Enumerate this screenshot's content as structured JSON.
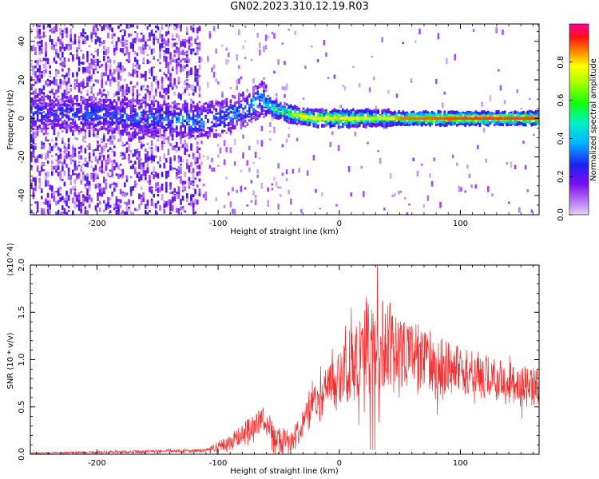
{
  "title": "GN02.2023.310.12.19.R03",
  "chart_data": [
    {
      "type": "heatmap",
      "xlabel": "Height of straight line (km)",
      "ylabel": "Frequency (Hz)",
      "xlim": [
        -255,
        165
      ],
      "ylim": [
        -50,
        49
      ],
      "xticks": [
        -200,
        -100,
        0,
        100
      ],
      "yticks": [
        -40,
        -20,
        0,
        20,
        40
      ],
      "colorbar": {
        "label": "Normalized spectral amplitude",
        "range": [
          0.0,
          1.0
        ],
        "ticks": [
          "0.0",
          "0.2",
          "0.4",
          "0.6",
          "0.8"
        ],
        "colormap": "rainbow (purple → blue → cyan → green → yellow → red → magenta)"
      },
      "ridge_frequency_hz": [
        {
          "x": -250,
          "f": 3
        },
        {
          "x": -200,
          "f": 2
        },
        {
          "x": -150,
          "f": 0
        },
        {
          "x": -120,
          "f": -2
        },
        {
          "x": -100,
          "f": 0
        },
        {
          "x": -80,
          "f": 4
        },
        {
          "x": -65,
          "f": 10
        },
        {
          "x": -55,
          "f": 5
        },
        {
          "x": -40,
          "f": 2
        },
        {
          "x": -20,
          "f": 0
        },
        {
          "x": 0,
          "f": 0
        },
        {
          "x": 50,
          "f": 0
        },
        {
          "x": 100,
          "f": 0
        },
        {
          "x": 165,
          "f": 0
        }
      ],
      "peak_amplitude": [
        {
          "x": -250,
          "a": 0.25
        },
        {
          "x": -200,
          "a": 0.28
        },
        {
          "x": -150,
          "a": 0.3
        },
        {
          "x": -120,
          "a": 0.4
        },
        {
          "x": -100,
          "a": 0.3
        },
        {
          "x": -80,
          "a": 0.38
        },
        {
          "x": -60,
          "a": 0.45
        },
        {
          "x": -50,
          "a": 0.6
        },
        {
          "x": -30,
          "a": 0.75
        },
        {
          "x": 0,
          "a": 0.8
        },
        {
          "x": 30,
          "a": 0.7
        },
        {
          "x": 50,
          "a": 0.82
        },
        {
          "x": 100,
          "a": 0.85
        },
        {
          "x": 165,
          "a": 0.85
        }
      ]
    },
    {
      "type": "line",
      "xlabel": "Height of straight line (km)",
      "ylabel": "SNR (10 * v/v)",
      "y_multiplier": "(x10^4)",
      "xlim": [
        -255,
        165
      ],
      "ylim": [
        0,
        2.0
      ],
      "xticks": [
        -200,
        -100,
        0,
        100
      ],
      "yticks": [
        "0.0",
        "0.5",
        "1.0",
        "1.5",
        "2.0"
      ],
      "series": [
        {
          "color": "#f03030",
          "envelope": [
            {
              "x": -255,
              "y": 0.01
            },
            {
              "x": -200,
              "y": 0.02
            },
            {
              "x": -150,
              "y": 0.03
            },
            {
              "x": -110,
              "y": 0.04
            },
            {
              "x": -90,
              "y": 0.12
            },
            {
              "x": -70,
              "y": 0.3
            },
            {
              "x": -62,
              "y": 0.4
            },
            {
              "x": -55,
              "y": 0.15
            },
            {
              "x": -40,
              "y": 0.1
            },
            {
              "x": -30,
              "y": 0.35
            },
            {
              "x": -20,
              "y": 0.55
            },
            {
              "x": -5,
              "y": 0.75
            },
            {
              "x": 10,
              "y": 0.95
            },
            {
              "x": 28,
              "y": 1.2
            },
            {
              "x": 45,
              "y": 1.15
            },
            {
              "x": 60,
              "y": 1.05
            },
            {
              "x": 80,
              "y": 0.95
            },
            {
              "x": 100,
              "y": 0.9
            },
            {
              "x": 130,
              "y": 0.78
            },
            {
              "x": 165,
              "y": 0.68
            }
          ],
          "noise": [
            {
              "x": -255,
              "n": 0.01
            },
            {
              "x": -110,
              "n": 0.02
            },
            {
              "x": -80,
              "n": 0.12
            },
            {
              "x": -60,
              "n": 0.15
            },
            {
              "x": -30,
              "n": 0.15
            },
            {
              "x": 0,
              "n": 0.3
            },
            {
              "x": 28,
              "n": 0.55
            },
            {
              "x": 50,
              "n": 0.4
            },
            {
              "x": 100,
              "n": 0.25
            },
            {
              "x": 165,
              "n": 0.22
            }
          ]
        }
      ]
    }
  ]
}
